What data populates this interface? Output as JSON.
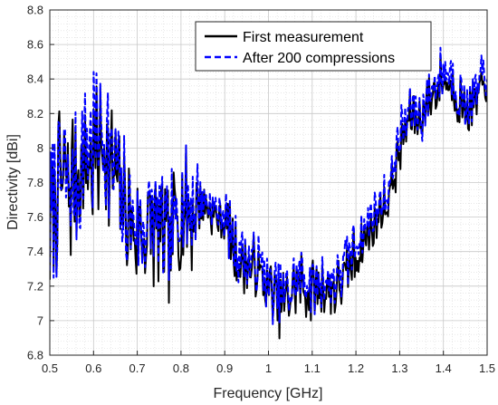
{
  "chart_data": {
    "type": "line",
    "title": "",
    "xlabel": "Frequency [GHz]",
    "ylabel": "Directivity [dBi]",
    "xlim": [
      0.5,
      1.5
    ],
    "ylim": [
      6.8,
      8.8
    ],
    "xticks": [
      "0.5",
      "0.6",
      "0.7",
      "0.8",
      "0.9",
      "1",
      "1.1",
      "1.2",
      "1.3",
      "1.4",
      "1.5"
    ],
    "yticks": [
      "6.8",
      "7",
      "7.2",
      "7.4",
      "7.6",
      "7.8",
      "8",
      "8.2",
      "8.4",
      "8.6",
      "8.8"
    ],
    "grid": true,
    "minor_grid": true,
    "legend_position": "top-right",
    "colors": {
      "first": "#000000",
      "after": "#0000ff",
      "grid": "#d9d9d9"
    },
    "x": [
      0.5,
      0.525,
      0.55,
      0.575,
      0.6,
      0.625,
      0.65,
      0.675,
      0.7,
      0.725,
      0.75,
      0.775,
      0.8,
      0.825,
      0.85,
      0.875,
      0.9,
      0.925,
      0.95,
      0.975,
      1.0,
      1.025,
      1.05,
      1.075,
      1.1,
      1.125,
      1.15,
      1.175,
      1.2,
      1.225,
      1.25,
      1.275,
      1.3,
      1.325,
      1.35,
      1.375,
      1.4,
      1.425,
      1.45,
      1.475,
      1.5
    ],
    "series": [
      {
        "name": "First measurement",
        "style": "solid",
        "values": [
          7.5,
          7.85,
          7.8,
          7.9,
          8.0,
          8.05,
          7.75,
          7.62,
          7.48,
          7.55,
          7.52,
          7.4,
          7.7,
          7.6,
          7.68,
          7.62,
          7.56,
          7.38,
          7.32,
          7.3,
          7.18,
          7.1,
          7.15,
          7.22,
          7.16,
          7.2,
          7.18,
          7.24,
          7.38,
          7.48,
          7.6,
          7.7,
          8.0,
          8.18,
          8.18,
          8.32,
          8.4,
          8.36,
          8.22,
          8.26,
          8.4
        ]
      },
      {
        "name": "After 200 compressions",
        "style": "dashed",
        "values": [
          7.55,
          7.82,
          7.78,
          7.92,
          8.05,
          8.1,
          7.8,
          7.66,
          7.52,
          7.6,
          7.55,
          7.44,
          7.73,
          7.64,
          7.7,
          7.64,
          7.6,
          7.42,
          7.36,
          7.33,
          7.22,
          7.13,
          7.18,
          7.26,
          7.2,
          7.24,
          7.22,
          7.3,
          7.46,
          7.56,
          7.66,
          7.76,
          8.06,
          8.22,
          8.2,
          8.35,
          8.45,
          8.4,
          8.26,
          8.3,
          8.46
        ]
      }
    ]
  }
}
